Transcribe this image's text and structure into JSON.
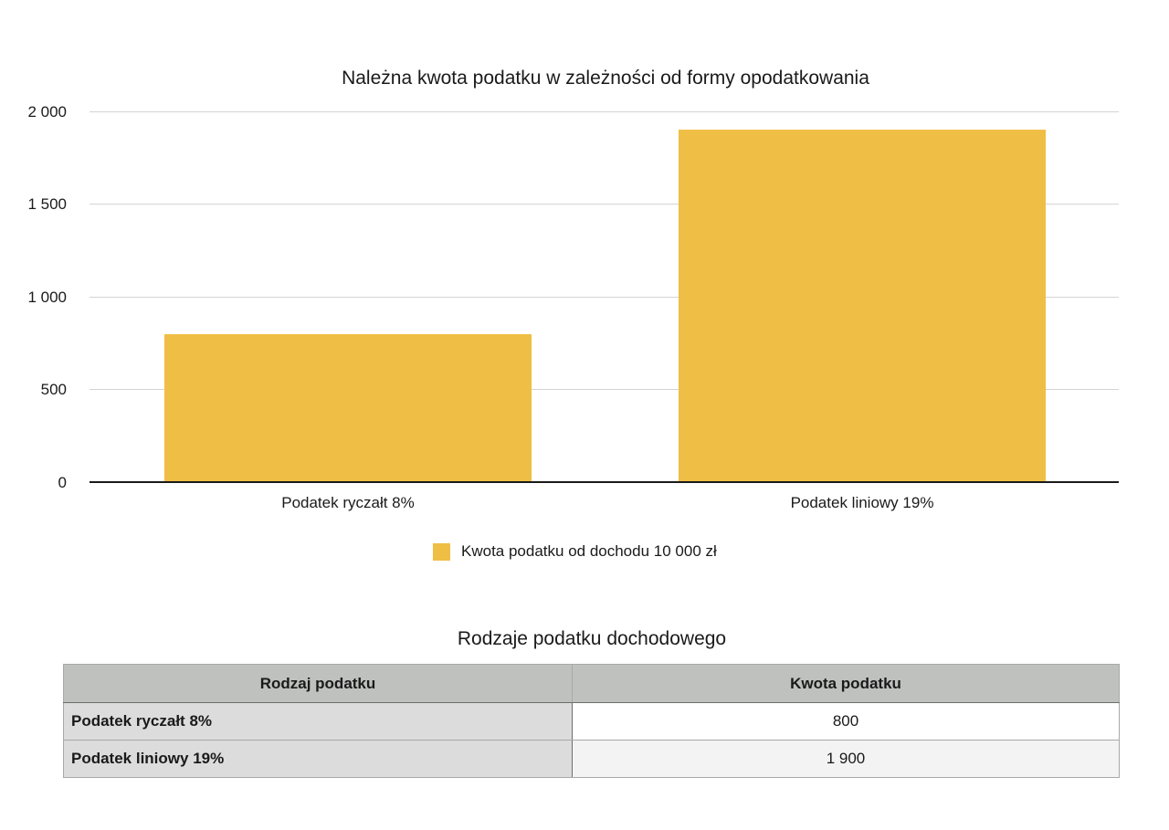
{
  "chart_data": {
    "type": "bar",
    "title": "Należna kwota podatku w zależności od formy opodatkowania",
    "categories": [
      "Podatek ryczałt 8%",
      "Podatek liniowy 19%"
    ],
    "series": [
      {
        "name": "Kwota podatku od dochodu 10 000 zł",
        "values": [
          800,
          1900
        ],
        "color": "#efbe44"
      }
    ],
    "xlabel": "",
    "ylabel": "",
    "ylim": [
      0,
      2000
    ],
    "yticks": [
      0,
      500,
      1000,
      1500,
      2000
    ],
    "ytick_labels": [
      "0",
      "500",
      "1 000",
      "1 500",
      "2 000"
    ],
    "grid": true,
    "legend_position": "bottom"
  },
  "chart": {
    "title": "Należna kwota podatku w zależności od formy opodatkowania",
    "yticks": [
      "2 000",
      "1 500",
      "1 000",
      "500",
      "0"
    ],
    "categories": [
      "Podatek ryczałt 8%",
      "Podatek liniowy 19%"
    ],
    "legend": "Kwota podatku od dochodu 10 000 zł"
  },
  "table": {
    "title": "Rodzaje podatku dochodowego",
    "headers": [
      "Rodzaj podatku",
      "Kwota podatku"
    ],
    "rows": [
      {
        "label": "Podatek ryczałt 8%",
        "value": "800"
      },
      {
        "label": "Podatek liniowy 19%",
        "value": "1 900"
      }
    ]
  }
}
